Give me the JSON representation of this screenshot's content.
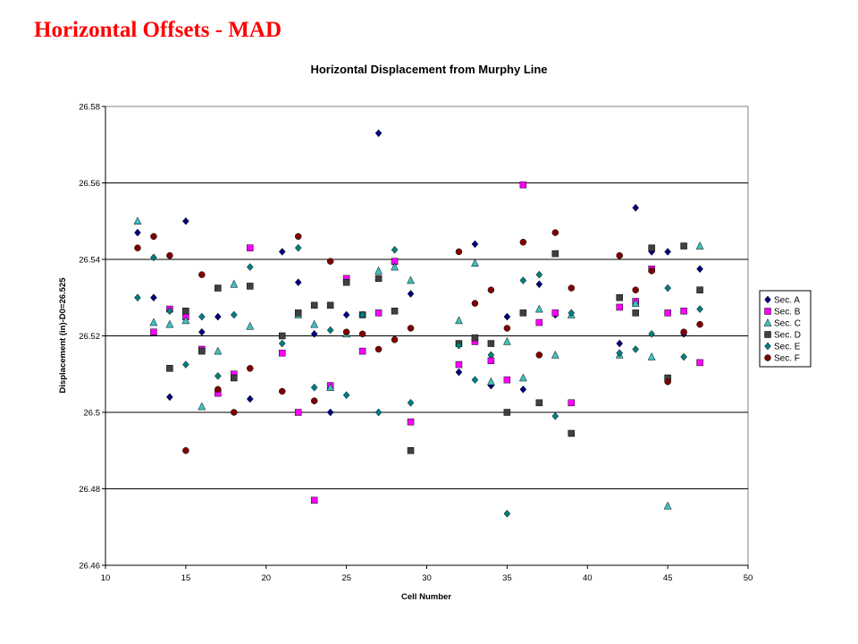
{
  "slide": {
    "title": "Horizontal Offsets - MAD"
  },
  "chart_data": {
    "type": "scatter",
    "title": "Horizontal Displacement from Murphy Line",
    "xlabel": "Cell Number",
    "ylabel": "Displacement (in)-D0=26.525",
    "xlim": [
      10,
      50
    ],
    "ylim": [
      26.46,
      26.58
    ],
    "xticks": [
      10,
      15,
      20,
      25,
      30,
      35,
      40,
      45,
      50
    ],
    "yticks": [
      26.46,
      26.48,
      26.5,
      26.52,
      26.54,
      26.56,
      26.58
    ],
    "ytick_labels": [
      "26.46",
      "26.48",
      "26.5",
      "26.52",
      "26.54",
      "26.56",
      "26.58"
    ],
    "grid": "horizontal major gridlines",
    "legend_position": "right",
    "series": [
      {
        "name": "Sec. A",
        "marker": "diamond",
        "color": "#000080",
        "x": [
          12,
          13,
          14,
          15,
          16,
          17,
          19,
          21,
          22,
          23,
          24,
          25,
          27,
          28,
          29,
          32,
          33,
          34,
          35,
          36,
          37,
          38,
          42,
          43,
          44,
          45,
          46,
          47
        ],
        "y": [
          26.547,
          26.53,
          26.504,
          26.55,
          26.521,
          26.525,
          26.5035,
          26.542,
          26.534,
          26.5205,
          26.5,
          26.5255,
          26.573,
          26.539,
          26.531,
          26.5105,
          26.544,
          26.507,
          26.525,
          26.506,
          26.5335,
          26.5255,
          26.518,
          26.5535,
          26.542,
          26.542,
          26.5205,
          26.5375
        ]
      },
      {
        "name": "Sec. B",
        "marker": "square",
        "color": "#ff00ff",
        "x": [
          13,
          14,
          15,
          16,
          17,
          18,
          19,
          21,
          22,
          23,
          24,
          25,
          26,
          27,
          28,
          29,
          32,
          33,
          34,
          35,
          36,
          37,
          38,
          39,
          42,
          43,
          44,
          45,
          46,
          47
        ],
        "y": [
          26.521,
          26.527,
          26.525,
          26.5165,
          26.505,
          26.51,
          26.543,
          26.5155,
          26.5,
          26.477,
          26.507,
          26.535,
          26.516,
          26.526,
          26.5395,
          26.4975,
          26.5125,
          26.5185,
          26.5135,
          26.5085,
          26.5595,
          26.5235,
          26.526,
          26.5025,
          26.5275,
          26.529,
          26.5375,
          26.526,
          26.5265,
          26.513
        ]
      },
      {
        "name": "Sec. C",
        "marker": "triangle",
        "color": "#40c0c0",
        "x": [
          12,
          13,
          14,
          15,
          16,
          17,
          18,
          19,
          22,
          23,
          24,
          25,
          27,
          28,
          29,
          32,
          33,
          34,
          35,
          36,
          37,
          38,
          39,
          42,
          43,
          44,
          45,
          47
        ],
        "y": [
          26.55,
          26.5235,
          26.523,
          26.524,
          26.5015,
          26.516,
          26.5335,
          26.5225,
          26.5255,
          26.523,
          26.5065,
          26.5205,
          26.537,
          26.538,
          26.5345,
          26.524,
          26.539,
          26.508,
          26.5185,
          26.509,
          26.527,
          26.515,
          26.5255,
          26.515,
          26.5285,
          26.5145,
          26.4755,
          26.5435
        ]
      },
      {
        "name": "Sec. D",
        "marker": "square",
        "color": "#404040",
        "x": [
          14,
          15,
          16,
          17,
          18,
          19,
          21,
          22,
          23,
          24,
          25,
          26,
          27,
          28,
          29,
          32,
          33,
          34,
          35,
          36,
          37,
          38,
          39,
          42,
          43,
          44,
          45,
          46,
          47
        ],
        "y": [
          26.5115,
          26.5265,
          26.516,
          26.5325,
          26.509,
          26.533,
          26.52,
          26.526,
          26.528,
          26.528,
          26.534,
          26.5255,
          26.535,
          26.5265,
          26.49,
          26.518,
          26.5195,
          26.518,
          26.5,
          26.526,
          26.5025,
          26.5415,
          26.4945,
          26.53,
          26.526,
          26.543,
          26.509,
          26.5435,
          26.532
        ]
      },
      {
        "name": "Sec. E",
        "marker": "diamond",
        "color": "#008080",
        "x": [
          12,
          13,
          14,
          15,
          16,
          17,
          18,
          19,
          21,
          22,
          23,
          24,
          25,
          26,
          27,
          28,
          29,
          32,
          33,
          34,
          35,
          36,
          37,
          38,
          39,
          42,
          43,
          44,
          45,
          46,
          47
        ],
        "y": [
          26.53,
          26.5405,
          26.5265,
          26.5125,
          26.525,
          26.5095,
          26.5255,
          26.538,
          26.518,
          26.543,
          26.5065,
          26.5215,
          26.5045,
          26.5255,
          26.5,
          26.5425,
          26.5025,
          26.5175,
          26.5085,
          26.515,
          26.4735,
          26.5345,
          26.536,
          26.499,
          26.526,
          26.5155,
          26.5165,
          26.5205,
          26.5325,
          26.5145,
          26.527
        ]
      },
      {
        "name": "Sec. F",
        "marker": "circle",
        "color": "#800000",
        "x": [
          12,
          13,
          14,
          15,
          16,
          17,
          18,
          19,
          21,
          22,
          23,
          24,
          25,
          26,
          27,
          28,
          29,
          32,
          33,
          34,
          35,
          36,
          37,
          38,
          39,
          42,
          43,
          44,
          45,
          46,
          47
        ],
        "y": [
          26.543,
          26.546,
          26.541,
          26.49,
          26.536,
          26.506,
          26.5,
          26.5115,
          26.5055,
          26.546,
          26.503,
          26.5395,
          26.521,
          26.5205,
          26.5165,
          26.519,
          26.522,
          26.542,
          26.5285,
          26.532,
          26.522,
          26.5445,
          26.515,
          26.547,
          26.5325,
          26.541,
          26.532,
          26.537,
          26.508,
          26.521,
          26.523
        ]
      }
    ]
  }
}
